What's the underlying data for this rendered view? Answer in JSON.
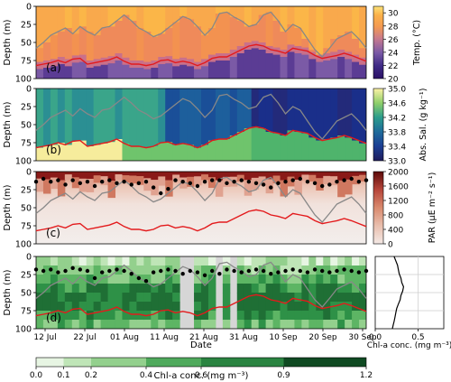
{
  "chart_data": [
    {
      "type": "heatmap",
      "panel_label": "(a)",
      "ylabel": "Depth (m)",
      "yticks": [
        0,
        25,
        50,
        75,
        100
      ],
      "ylim": [
        100,
        0
      ],
      "colorbar": {
        "label": "Temp. (°C)",
        "ticks": [
          20,
          22,
          24,
          26,
          28,
          30
        ],
        "range": [
          20,
          31
        ]
      },
      "mld_gray": [
        58,
        50,
        40,
        35,
        30,
        38,
        28,
        35,
        40,
        30,
        28,
        20,
        12,
        20,
        30,
        35,
        42,
        38,
        30,
        22,
        14,
        18,
        28,
        40,
        30,
        10,
        8,
        15,
        20,
        28,
        25,
        12,
        8,
        20,
        35,
        25,
        30,
        45,
        60,
        70,
        58,
        45,
        40,
        35,
        45,
        58
      ],
      "mld_red": [
        82,
        80,
        78,
        75,
        78,
        73,
        72,
        80,
        78,
        76,
        74,
        70,
        76,
        80,
        80,
        82,
        80,
        75,
        74,
        78,
        76,
        78,
        82,
        78,
        72,
        70,
        70,
        65,
        60,
        55,
        53,
        55,
        60,
        62,
        65,
        58,
        60,
        62,
        68,
        72,
        70,
        68,
        65,
        68,
        72,
        76
      ]
    },
    {
      "type": "heatmap",
      "panel_label": "(b)",
      "ylabel": "Depth (m)",
      "yticks": [
        0,
        25,
        50,
        75,
        100
      ],
      "ylim": [
        100,
        0
      ],
      "colorbar": {
        "label": "Abs. Sal. (g kg⁻¹)",
        "ticks": [
          "33.0",
          "33.4",
          "33.8",
          "34.2",
          "34.6",
          "35.0"
        ],
        "range": [
          33.0,
          35.0
        ]
      }
    },
    {
      "type": "heatmap",
      "panel_label": "(c)",
      "ylabel": "Depth (m)",
      "yticks": [
        0,
        25,
        50,
        75,
        100
      ],
      "ylim": [
        100,
        0
      ],
      "colorbar": {
        "label": "PAR (μE m⁻² s⁻¹)",
        "ticks": [
          0,
          400,
          800,
          1200,
          1600,
          2000
        ],
        "range": [
          0,
          2000
        ]
      },
      "dots_depth": [
        14,
        10,
        14,
        12,
        18,
        12,
        16,
        14,
        20,
        14,
        12,
        16,
        14,
        18,
        16,
        14,
        22,
        30,
        24,
        12,
        14,
        16,
        20,
        14,
        12,
        12,
        16,
        14,
        12,
        14,
        16,
        18,
        22,
        16,
        14,
        12,
        10,
        14,
        16,
        20,
        18,
        14,
        12,
        10,
        14,
        12
      ]
    },
    {
      "type": "heatmap",
      "panel_label": "(d)",
      "ylabel": "Depth (m)",
      "xlabel": "Date",
      "xticks": [
        "12 Jul",
        "22 Jul",
        "01 Aug",
        "11 Aug",
        "21 Aug",
        "31 Aug",
        "10 Sep",
        "20 Sep",
        "30 Sep"
      ],
      "yticks": [
        0,
        25,
        50,
        75,
        100
      ],
      "ylim": [
        100,
        0
      ],
      "colorbar": {
        "label": "Chl-a conc. (mg m⁻³)",
        "ticks": [
          "0.0",
          "0.1",
          "0.2",
          "0.4",
          "0.6",
          "0.9",
          "1.2"
        ]
      },
      "dots_depth": [
        18,
        20,
        18,
        22,
        20,
        16,
        18,
        20,
        30,
        22,
        20,
        18,
        20,
        24,
        30,
        34,
        22,
        20,
        18,
        20,
        24,
        20,
        22,
        26,
        20,
        24,
        18,
        20,
        22,
        20,
        18,
        20,
        24,
        22,
        20,
        18,
        20,
        22,
        18,
        20,
        22,
        20,
        18,
        20,
        22,
        20
      ]
    },
    {
      "type": "line",
      "xlabel": "Chl-a conc. (mg m⁻³)",
      "xticks": [
        "0.0",
        "0.5"
      ],
      "xlim": [
        0,
        0.8
      ],
      "ylim": [
        100,
        0
      ],
      "profile_x": [
        0.22,
        0.24,
        0.26,
        0.27,
        0.28,
        0.3,
        0.31,
        0.33,
        0.32,
        0.3,
        0.29,
        0.27,
        0.25,
        0.24,
        0.23,
        0.22,
        0.21,
        0.2
      ],
      "profile_depth": [
        0,
        6,
        12,
        18,
        24,
        30,
        36,
        42,
        48,
        54,
        60,
        66,
        72,
        78,
        84,
        90,
        95,
        100
      ]
    }
  ],
  "colors": {
    "mld_gray": "#888888",
    "mld_red": "#e31a1c",
    "dots": "#000000"
  }
}
